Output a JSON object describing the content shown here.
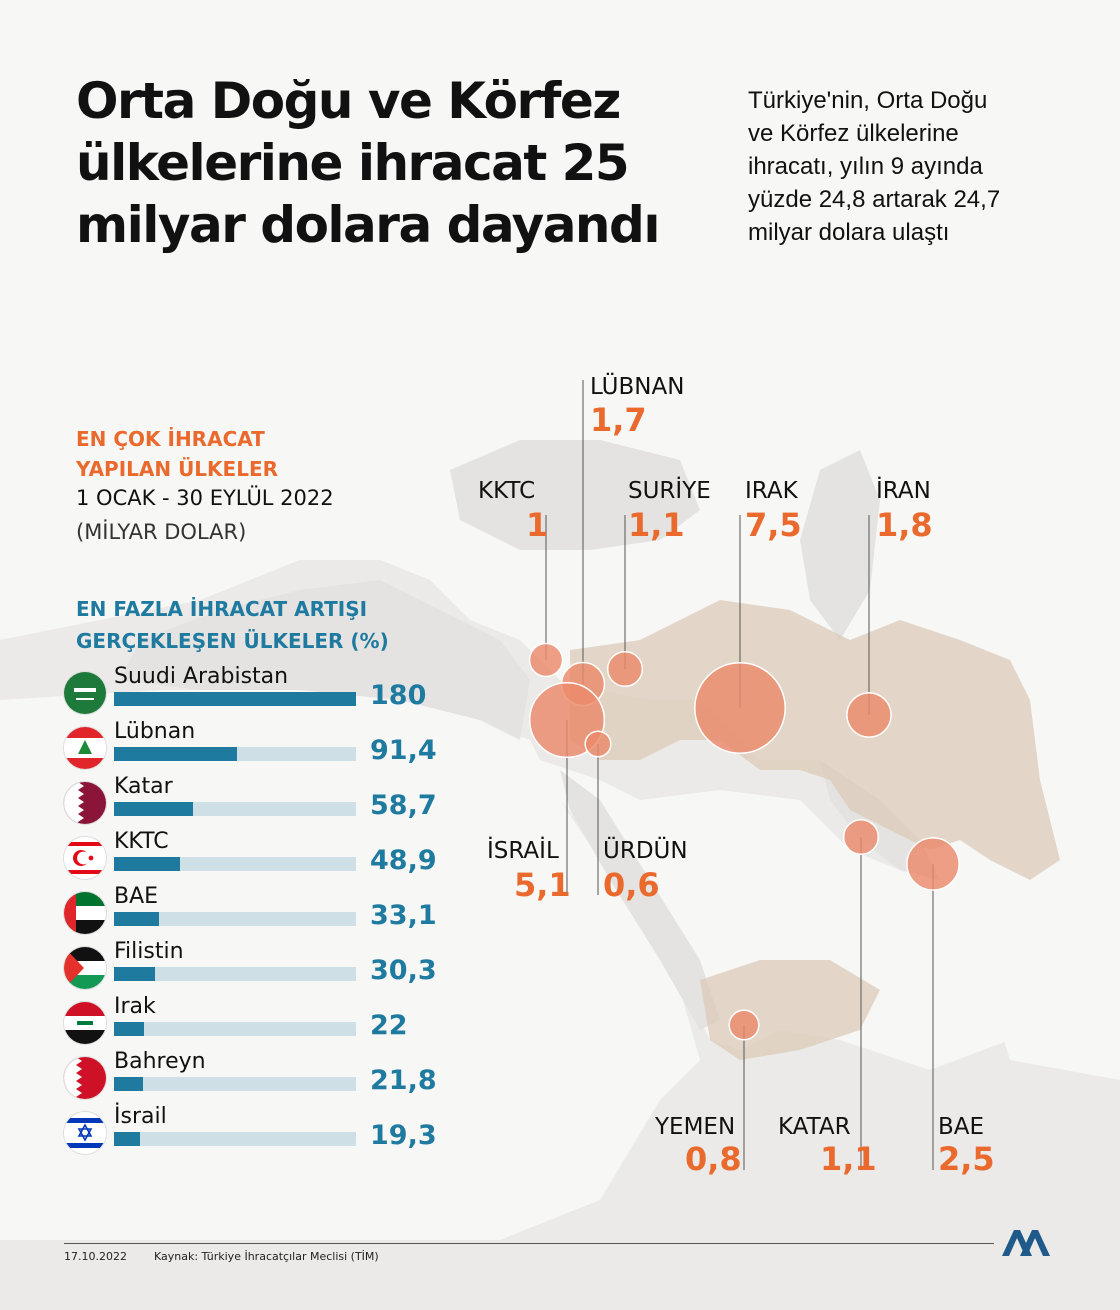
{
  "title": "Orta Doğu ve Körfez ülkelerine ihracat 25 milyar dolara dayandı",
  "intro": "Türkiye'nin, Orta Doğu ve Körfez ülkelerine ihracatı, yılın 9 ayında yüzde 24,8 artarak 24,7 milyar dolara ulaştı",
  "section1": {
    "heading_line1": "EN ÇOK İHRACAT",
    "heading_line2": "YAPILAN ÜLKELER",
    "period": "1 OCAK - 30 EYLÜL 2022",
    "unit": "(MİLYAR DOLAR)"
  },
  "section2": {
    "heading_line1": "EN FAZLA İHRACAT ARTIŞI",
    "heading_line2": "GERÇEKLEŞEN ÜLKELER (%)"
  },
  "colors": {
    "orange": "#ea6a2e",
    "blue": "#1f7aa0",
    "bar_track": "#cfdfe6",
    "bubble": "#ea8a6a",
    "region": "#dccbb8"
  },
  "chart_data": [
    {
      "type": "bar",
      "orientation": "horizontal",
      "categories": [
        "Suudi Arabistan",
        "Lübnan",
        "Katar",
        "KKTC",
        "BAE",
        "Filistin",
        "Irak",
        "Bahreyn",
        "İsrail"
      ],
      "values": [
        180,
        91.4,
        58.7,
        48.9,
        33.1,
        30.3,
        22,
        21.8,
        19.3
      ],
      "value_labels": [
        "180",
        "91,4",
        "58,7",
        "48,9",
        "33,1",
        "30,3",
        "22",
        "21,8",
        "19,3"
      ],
      "xlim": [
        0,
        180
      ]
    },
    {
      "type": "scatter",
      "categories": [
        "KKTC",
        "LÜBNAN",
        "SURİYE",
        "IRAK",
        "İRAN",
        "İSRAİL",
        "ÜRDÜN",
        "YEMEN",
        "KATAR",
        "BAE"
      ],
      "values": [
        1,
        1.7,
        1.1,
        7.5,
        1.8,
        5.1,
        0.6,
        0.8,
        1.1,
        2.5
      ],
      "value_labels": [
        "1",
        "1,7",
        "1,1",
        "7,5",
        "1,8",
        "5,1",
        "0,6",
        "0,8",
        "1,1",
        "2,5"
      ]
    }
  ],
  "footer": {
    "date": "17.10.2022",
    "source": "Kaynak: Türkiye İhracatçılar Meclisi (TİM)"
  }
}
